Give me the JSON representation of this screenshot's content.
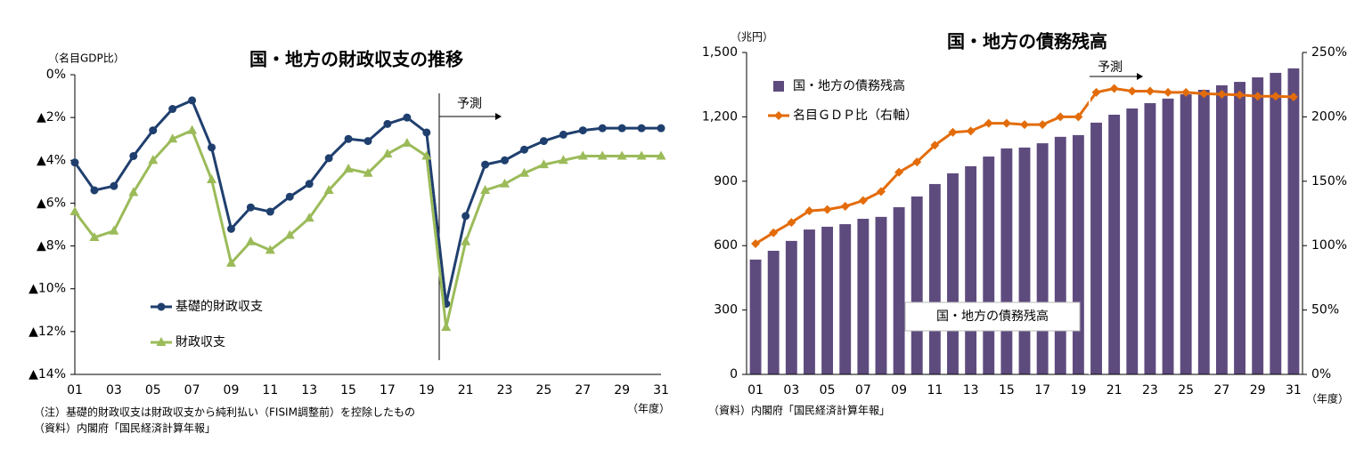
{
  "chart_data": [
    {
      "type": "line",
      "title": "国・地方の財政収支の推移",
      "ylabel": "（名目GDP比）",
      "xlabel": "（年度）",
      "forecast_label": "予測",
      "notes": [
        "（注）基礎的財政収支は財政収支から純利払い（FISIM調整前）を控除したもの",
        "（資料）内閣府「国民経済計算年報」"
      ],
      "categories": [
        "01",
        null,
        "03",
        null,
        "05",
        null,
        "07",
        null,
        "09",
        null,
        "11",
        null,
        "13",
        null,
        "15",
        null,
        "17",
        null,
        "19",
        null,
        "21",
        null,
        "23",
        null,
        "25",
        null,
        "27",
        null,
        "29",
        null,
        "31"
      ],
      "ylim": [
        -14,
        0
      ],
      "yticks": [
        {
          "value": 0,
          "label": "0%"
        },
        {
          "value": -2,
          "label": "▲2%"
        },
        {
          "value": -4,
          "label": "▲4%"
        },
        {
          "value": -6,
          "label": "▲6%"
        },
        {
          "value": -8,
          "label": "▲8%"
        },
        {
          "value": -10,
          "label": "▲10%"
        },
        {
          "value": -12,
          "label": "▲12%"
        },
        {
          "value": -14,
          "label": "▲14%"
        }
      ],
      "legend": "lower left",
      "series": [
        {
          "name": "基礎的財政収支",
          "color": "#1f3f6e",
          "marker": "circle",
          "values": [
            -4.1,
            -5.4,
            -5.2,
            -3.8,
            -2.6,
            -1.6,
            -1.2,
            -3.4,
            -7.2,
            -6.2,
            -6.4,
            -5.7,
            -5.1,
            -3.9,
            -3.0,
            -3.1,
            -2.3,
            -2.0,
            -2.7,
            -10.7,
            -6.6,
            -4.2,
            -4.0,
            -3.5,
            -3.1,
            -2.8,
            -2.6,
            -2.5,
            -2.5,
            -2.5,
            -2.5
          ]
        },
        {
          "name": "財政収支",
          "color": "#9bbb59",
          "marker": "triangle",
          "values": [
            -6.4,
            -7.6,
            -7.3,
            -5.5,
            -4.0,
            -3.0,
            -2.6,
            -4.9,
            -8.8,
            -7.8,
            -8.2,
            -7.5,
            -6.7,
            -5.4,
            -4.4,
            -4.6,
            -3.7,
            -3.2,
            -3.8,
            -11.8,
            -7.8,
            -5.4,
            -5.1,
            -4.6,
            -4.2,
            -4.0,
            -3.8,
            -3.8,
            -3.8,
            -3.8,
            -3.8
          ]
        }
      ]
    },
    {
      "type": "bar",
      "title": "国・地方の債務残高",
      "ylabel": "（兆円）",
      "xlabel": "（年度）",
      "forecast_label": "予測",
      "bar_label": "国・地方の債務残高",
      "notes": [
        "（資料）内閣府「国民経済計算年報」"
      ],
      "categories": [
        "01",
        null,
        "03",
        null,
        "05",
        null,
        "07",
        null,
        "09",
        null,
        "11",
        null,
        "13",
        null,
        "15",
        null,
        "17",
        null,
        "19",
        null,
        "21",
        null,
        "23",
        null,
        "25",
        null,
        "27",
        null,
        "29",
        null,
        "31"
      ],
      "ylim": [
        0,
        1500
      ],
      "yticks": [
        0,
        300,
        600,
        900,
        {
          "value": 1200,
          "label": "1,200"
        },
        {
          "value": 1500,
          "label": "1,500"
        }
      ],
      "y2lim": [
        0,
        250
      ],
      "y2ticks": [
        {
          "value": 0,
          "label": "0%"
        },
        {
          "value": 50,
          "label": "50%"
        },
        {
          "value": 100,
          "label": "100%"
        },
        {
          "value": 150,
          "label": "150%"
        },
        {
          "value": 200,
          "label": "200%"
        },
        {
          "value": 250,
          "label": "250%"
        }
      ],
      "legend": "upper left",
      "series": [
        {
          "name": "国・地方の債務残高",
          "type": "bar",
          "color": "#5e4b7e",
          "values": [
            535,
            576,
            622,
            675,
            688,
            700,
            725,
            734,
            779,
            829,
            887,
            937,
            970,
            1015,
            1053,
            1057,
            1077,
            1107,
            1115,
            1173,
            1210,
            1239,
            1264,
            1285,
            1305,
            1326,
            1347,
            1363,
            1384,
            1405,
            1426
          ]
        },
        {
          "name": "名目ＧＤＰ比（右軸）",
          "type": "line",
          "axis": "y2",
          "color": "#e36c0a",
          "marker": "diamond",
          "values": [
            101.5,
            110,
            118,
            127,
            128,
            130.5,
            135,
            142,
            157,
            165,
            178,
            188,
            189,
            195,
            195,
            194,
            194,
            200,
            200,
            219,
            222,
            220,
            220,
            219,
            219,
            218,
            217.5,
            217,
            216,
            216,
            215.5
          ]
        }
      ]
    }
  ]
}
